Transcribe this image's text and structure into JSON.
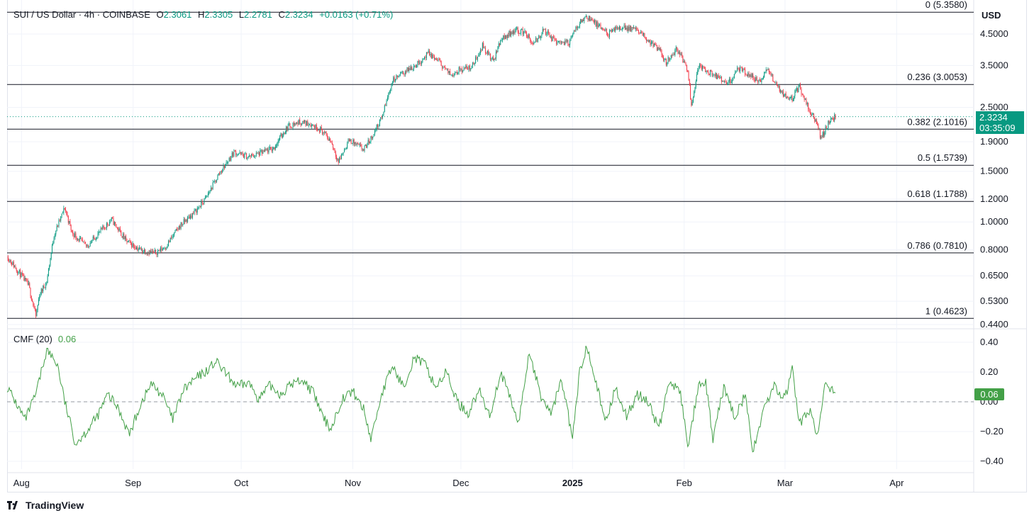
{
  "legend": {
    "symbol": "SUI / US Dollar · 4h · COINBASE",
    "open_label": "O",
    "open": "2.3061",
    "high_label": "H",
    "high": "2.3305",
    "low_label": "L",
    "low": "2.2781",
    "close_label": "C",
    "close": "2.3234",
    "change": "+0.0163 (+0.71%)"
  },
  "currency": "USD",
  "last_price_tag": {
    "price": "2.3234",
    "countdown": "03:35:09"
  },
  "cmf": {
    "label": "CMF (20)",
    "value": "0.06",
    "tag": "0.06"
  },
  "brand": "TradingView",
  "colors": {
    "up": "#089981",
    "down": "#f23645",
    "cmf": "#43a047",
    "fib": "#131722",
    "grid": "#f0f3fa"
  },
  "chart_data": [
    {
      "type": "candlestick",
      "scale": "log",
      "ylim": [
        0.42,
        5.6
      ],
      "y_ticks": [
        4.5,
        3.5,
        2.5,
        1.9,
        1.5,
        1.2,
        1.0,
        0.8,
        0.65,
        0.53,
        0.44
      ],
      "y_tick_labels": [
        "4.5000",
        "3.5000",
        "2.5000",
        "1.9000",
        "1.5000",
        "1.2000",
        "1.0000",
        "0.8000",
        "0.6500",
        "0.5300",
        "0.4400"
      ],
      "x_labels": [
        {
          "date": "2024-08-01",
          "label": "Aug"
        },
        {
          "date": "2024-09-01",
          "label": "Sep"
        },
        {
          "date": "2024-10-01",
          "label": "Oct"
        },
        {
          "date": "2024-11-01",
          "label": "Nov"
        },
        {
          "date": "2024-12-01",
          "label": "Dec"
        },
        {
          "date": "2025-01-01",
          "label": "2025"
        },
        {
          "date": "2025-02-01",
          "label": "Feb"
        },
        {
          "date": "2025-03-01",
          "label": "Mar"
        },
        {
          "date": "2025-04-01",
          "label": "Apr"
        }
      ],
      "fib_levels": [
        {
          "ratio": "0",
          "price": 5.358,
          "label": "0 (5.3580)"
        },
        {
          "ratio": "0.236",
          "price": 3.0053,
          "label": "0.236 (3.0053)"
        },
        {
          "ratio": "0.382",
          "price": 2.1016,
          "label": "0.382 (2.1016)"
        },
        {
          "ratio": "0.5",
          "price": 1.5739,
          "label": "0.5 (1.5739)"
        },
        {
          "ratio": "0.618",
          "price": 1.1788,
          "label": "0.618 (1.1788)"
        },
        {
          "ratio": "0.786",
          "price": 0.781,
          "label": "0.786 (0.7810)"
        },
        {
          "ratio": "1",
          "price": 0.4623,
          "label": "1 (0.4623)"
        }
      ],
      "last_price": 2.3234,
      "price_path": [
        [
          "2024-07-28",
          0.76
        ],
        [
          "2024-08-03",
          0.6
        ],
        [
          "2024-08-05",
          0.47
        ],
        [
          "2024-08-06",
          0.56
        ],
        [
          "2024-08-08",
          0.62
        ],
        [
          "2024-08-10",
          0.9
        ],
        [
          "2024-08-13",
          1.12
        ],
        [
          "2024-08-15",
          0.92
        ],
        [
          "2024-08-19",
          0.82
        ],
        [
          "2024-08-23",
          0.93
        ],
        [
          "2024-08-26",
          1.02
        ],
        [
          "2024-08-30",
          0.86
        ],
        [
          "2024-09-03",
          0.8
        ],
        [
          "2024-09-07",
          0.78
        ],
        [
          "2024-09-10",
          0.82
        ],
        [
          "2024-09-14",
          0.97
        ],
        [
          "2024-09-18",
          1.08
        ],
        [
          "2024-09-21",
          1.2
        ],
        [
          "2024-09-25",
          1.48
        ],
        [
          "2024-09-29",
          1.75
        ],
        [
          "2024-10-03",
          1.68
        ],
        [
          "2024-10-06",
          1.73
        ],
        [
          "2024-10-10",
          1.8
        ],
        [
          "2024-10-12",
          1.98
        ],
        [
          "2024-10-14",
          2.15
        ],
        [
          "2024-10-17",
          2.22
        ],
        [
          "2024-10-20",
          2.2
        ],
        [
          "2024-10-23",
          2.1
        ],
        [
          "2024-10-26",
          1.9
        ],
        [
          "2024-10-28",
          1.62
        ],
        [
          "2024-10-31",
          1.93
        ],
        [
          "2024-11-04",
          1.78
        ],
        [
          "2024-11-06",
          1.95
        ],
        [
          "2024-11-09",
          2.3
        ],
        [
          "2024-11-12",
          3.1
        ],
        [
          "2024-11-15",
          3.3
        ],
        [
          "2024-11-19",
          3.55
        ],
        [
          "2024-11-22",
          3.85
        ],
        [
          "2024-11-25",
          3.6
        ],
        [
          "2024-11-28",
          3.25
        ],
        [
          "2024-12-01",
          3.4
        ],
        [
          "2024-12-04",
          3.45
        ],
        [
          "2024-12-07",
          4.1
        ],
        [
          "2024-12-10",
          3.6
        ],
        [
          "2024-12-12",
          4.3
        ],
        [
          "2024-12-16",
          4.65
        ],
        [
          "2024-12-19",
          4.55
        ],
        [
          "2024-12-21",
          4.1
        ],
        [
          "2024-12-24",
          4.65
        ],
        [
          "2024-12-27",
          4.25
        ],
        [
          "2024-12-31",
          4.2
        ],
        [
          "2025-01-03",
          4.95
        ],
        [
          "2025-01-05",
          5.2
        ],
        [
          "2025-01-08",
          4.8
        ],
        [
          "2025-01-11",
          4.5
        ],
        [
          "2025-01-14",
          4.75
        ],
        [
          "2025-01-18",
          4.7
        ],
        [
          "2025-01-21",
          4.4
        ],
        [
          "2025-01-25",
          3.95
        ],
        [
          "2025-01-27",
          3.6
        ],
        [
          "2025-01-30",
          4.0
        ],
        [
          "2025-02-02",
          3.4
        ],
        [
          "2025-02-03",
          2.55
        ],
        [
          "2025-02-05",
          3.5
        ],
        [
          "2025-02-08",
          3.3
        ],
        [
          "2025-02-10",
          3.2
        ],
        [
          "2025-02-13",
          3.0
        ],
        [
          "2025-02-16",
          3.4
        ],
        [
          "2025-02-19",
          3.25
        ],
        [
          "2025-02-22",
          3.05
        ],
        [
          "2025-02-24",
          3.4
        ],
        [
          "2025-02-27",
          2.95
        ],
        [
          "2025-03-01",
          2.75
        ],
        [
          "2025-03-03",
          2.7
        ],
        [
          "2025-03-05",
          2.95
        ],
        [
          "2025-03-08",
          2.4
        ],
        [
          "2025-03-10",
          2.2
        ],
        [
          "2025-03-11",
          1.95
        ],
        [
          "2025-03-13",
          2.2
        ],
        [
          "2025-03-15",
          2.3234
        ]
      ]
    },
    {
      "type": "line",
      "name": "CMF (20)",
      "ylim": [
        -0.45,
        0.43
      ],
      "y_ticks": [
        0.4,
        0.2,
        0.0,
        -0.2,
        -0.4
      ],
      "y_tick_labels": [
        "0.40",
        "0.20",
        "0.00",
        "−0.20",
        "−0.40"
      ],
      "zero_line": 0.0,
      "path": [
        [
          "2024-07-28",
          0.1
        ],
        [
          "2024-08-02",
          -0.12
        ],
        [
          "2024-08-05",
          0.05
        ],
        [
          "2024-08-08",
          0.35
        ],
        [
          "2024-08-11",
          0.25
        ],
        [
          "2024-08-13",
          0.0
        ],
        [
          "2024-08-16",
          -0.28
        ],
        [
          "2024-08-19",
          -0.2
        ],
        [
          "2024-08-22",
          -0.1
        ],
        [
          "2024-08-25",
          0.05
        ],
        [
          "2024-08-28",
          -0.05
        ],
        [
          "2024-08-31",
          -0.22
        ],
        [
          "2024-09-03",
          -0.02
        ],
        [
          "2024-09-06",
          0.12
        ],
        [
          "2024-09-09",
          0.05
        ],
        [
          "2024-09-12",
          -0.12
        ],
        [
          "2024-09-15",
          0.08
        ],
        [
          "2024-09-18",
          0.15
        ],
        [
          "2024-09-21",
          0.2
        ],
        [
          "2024-09-24",
          0.27
        ],
        [
          "2024-09-27",
          0.18
        ],
        [
          "2024-09-30",
          0.1
        ],
        [
          "2024-10-03",
          0.13
        ],
        [
          "2024-10-06",
          0.02
        ],
        [
          "2024-10-09",
          0.11
        ],
        [
          "2024-10-12",
          0.05
        ],
        [
          "2024-10-15",
          0.12
        ],
        [
          "2024-10-18",
          0.15
        ],
        [
          "2024-10-21",
          0.06
        ],
        [
          "2024-10-24",
          -0.12
        ],
        [
          "2024-10-26",
          -0.18
        ],
        [
          "2024-10-29",
          0.02
        ],
        [
          "2024-11-01",
          0.07
        ],
        [
          "2024-11-04",
          -0.05
        ],
        [
          "2024-11-06",
          -0.25
        ],
        [
          "2024-11-09",
          0.05
        ],
        [
          "2024-11-12",
          0.24
        ],
        [
          "2024-11-15",
          0.1
        ],
        [
          "2024-11-18",
          0.3
        ],
        [
          "2024-11-21",
          0.25
        ],
        [
          "2024-11-24",
          0.1
        ],
        [
          "2024-11-27",
          0.2
        ],
        [
          "2024-11-30",
          0.0
        ],
        [
          "2024-12-03",
          -0.08
        ],
        [
          "2024-12-06",
          0.08
        ],
        [
          "2024-12-09",
          -0.1
        ],
        [
          "2024-12-12",
          0.2
        ],
        [
          "2024-12-15",
          0.0
        ],
        [
          "2024-12-17",
          -0.15
        ],
        [
          "2024-12-20",
          0.34
        ],
        [
          "2024-12-23",
          0.05
        ],
        [
          "2024-12-26",
          -0.08
        ],
        [
          "2024-12-29",
          0.15
        ],
        [
          "2025-01-01",
          -0.25
        ],
        [
          "2025-01-03",
          0.2
        ],
        [
          "2025-01-05",
          0.38
        ],
        [
          "2025-01-07",
          0.2
        ],
        [
          "2025-01-10",
          -0.15
        ],
        [
          "2025-01-13",
          0.1
        ],
        [
          "2025-01-16",
          -0.1
        ],
        [
          "2025-01-19",
          0.05
        ],
        [
          "2025-01-22",
          0.0
        ],
        [
          "2025-01-25",
          -0.18
        ],
        [
          "2025-01-28",
          0.15
        ],
        [
          "2025-01-31",
          0.05
        ],
        [
          "2025-02-02",
          -0.3
        ],
        [
          "2025-02-05",
          0.1
        ],
        [
          "2025-02-07",
          0.12
        ],
        [
          "2025-02-09",
          -0.25
        ],
        [
          "2025-02-12",
          0.1
        ],
        [
          "2025-02-15",
          -0.1
        ],
        [
          "2025-02-18",
          0.05
        ],
        [
          "2025-02-20",
          -0.35
        ],
        [
          "2025-02-23",
          -0.05
        ],
        [
          "2025-02-26",
          0.1
        ],
        [
          "2025-03-01",
          0.02
        ],
        [
          "2025-03-03",
          0.22
        ],
        [
          "2025-03-05",
          -0.15
        ],
        [
          "2025-03-08",
          -0.05
        ],
        [
          "2025-03-10",
          -0.24
        ],
        [
          "2025-03-12",
          0.1
        ],
        [
          "2025-03-15",
          0.06
        ]
      ]
    }
  ]
}
